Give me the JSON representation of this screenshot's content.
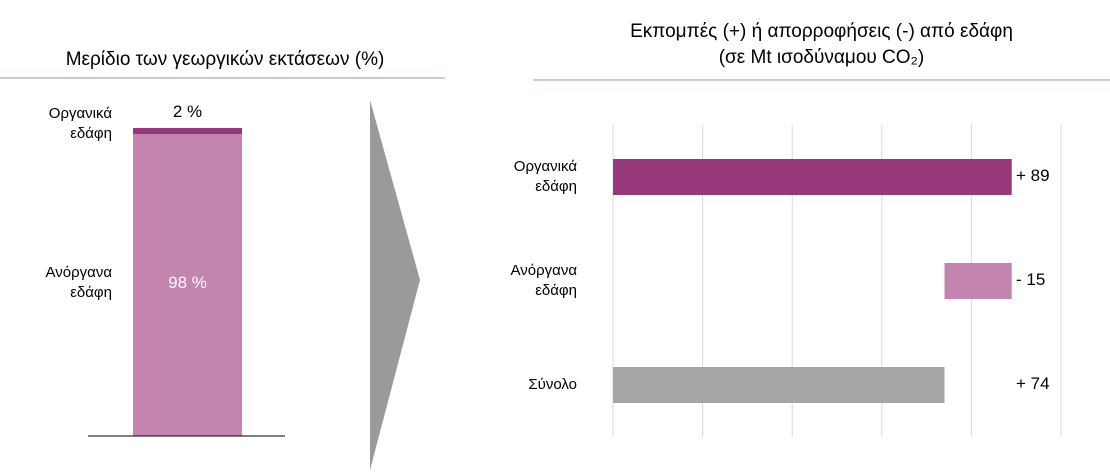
{
  "chart_data": [
    {
      "type": "stacked_bar",
      "title": "Μερίδιο των γεωργικών εκτάσεων (%)",
      "series": [
        {
          "name": "Ανόργανα εδάφη",
          "color": "#c384b0",
          "values": [
            98
          ],
          "value_labels": [
            "98 %"
          ]
        },
        {
          "name": "Οργανικά εδάφη",
          "color": "#96387a",
          "values": [
            2
          ],
          "value_labels": [
            "2 %"
          ]
        }
      ],
      "ylim": [
        0,
        100
      ]
    },
    {
      "type": "waterfall",
      "title": "Εκπομπές (+) ή απορροφήσεις (-) από εδάφη",
      "subtitle": "(σε Mt ισοδύναμου CO₂)",
      "categories": [
        "Οργανικά εδάφη",
        "Ανόργανα εδάφη",
        "Σύνολο"
      ],
      "values": [
        89,
        -15,
        74
      ],
      "value_labels": [
        "+ 89",
        "- 15",
        "+ 74"
      ],
      "colors": [
        "#96387a",
        "#c384b0",
        "#a6a6a6"
      ],
      "xlim": [
        0,
        100
      ],
      "xticks": [
        0,
        20,
        40,
        60,
        80,
        100
      ],
      "grid": true
    }
  ]
}
